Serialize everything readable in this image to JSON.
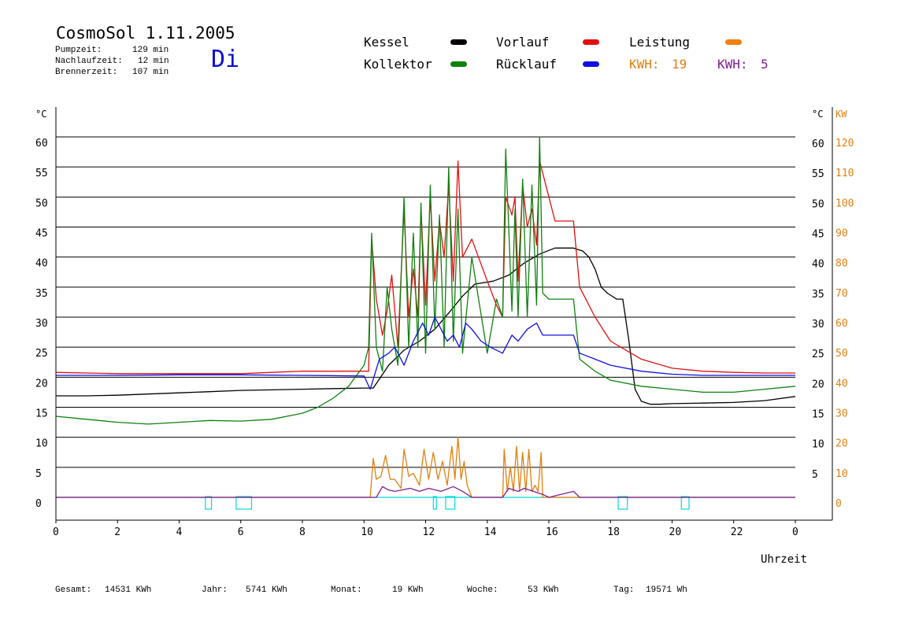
{
  "header": {
    "title": "CosmoSol 1.11.2005",
    "day": "Di",
    "stats": [
      {
        "label": "Pumpzeit:",
        "value": "129 min"
      },
      {
        "label": "Nachlaufzeit:",
        "value": "12 min"
      },
      {
        "label": "Brennerzeit:",
        "value": "107 min"
      }
    ]
  },
  "legend": {
    "kessel": {
      "label": "Kessel",
      "color": "#000000"
    },
    "kollektor": {
      "label": "Kollektor",
      "color": "#108010"
    },
    "vorlauf": {
      "label": "Vorlauf",
      "color": "#e01010"
    },
    "ruecklauf": {
      "label": "Rücklauf",
      "color": "#1010e0"
    },
    "leistung": {
      "label": "Leistung",
      "color": "#f08010"
    },
    "kwh1": {
      "label": "KWH:",
      "value": "19",
      "color": "#e08010"
    },
    "kwh2": {
      "label": "KWH:",
      "value": "5",
      "color": "#802090"
    }
  },
  "footer": {
    "gesamt": {
      "label": "Gesamt:",
      "value": "14531 KWh"
    },
    "jahr": {
      "label": "Jahr:",
      "value": "5741 KWh"
    },
    "monat": {
      "label": "Monat:",
      "value": "19 KWh"
    },
    "woche": {
      "label": "Woche:",
      "value": "53 KWh"
    },
    "tag": {
      "label": "Tag:",
      "value": "19571 Wh"
    }
  },
  "chart_data": {
    "type": "line",
    "xlabel": "Uhrzeit",
    "ylabel_left": "°C",
    "ylabel_right_temp": "°C",
    "ylabel_right_power": "KW",
    "xlim": [
      0,
      24
    ],
    "ylim": [
      0,
      60
    ],
    "x_ticks": [
      "0",
      "2",
      "4",
      "6",
      "8",
      "10",
      "12",
      "14",
      "16",
      "18",
      "20",
      "22",
      "0"
    ],
    "y_ticks_left": [
      "0",
      "5",
      "10",
      "15",
      "20",
      "25",
      "30",
      "35",
      "40",
      "45",
      "50",
      "55",
      "60"
    ],
    "y_ticks_right_temp": [
      "",
      "5",
      "10",
      "15",
      "20",
      "25",
      "30",
      "35",
      "40",
      "45",
      "50",
      "55",
      "60"
    ],
    "y_ticks_right_power": [
      "0",
      "10",
      "20",
      "30",
      "40",
      "50",
      "60",
      "70",
      "80",
      "90",
      "100",
      "110",
      "120"
    ],
    "grid": true,
    "series": [
      {
        "name": "Kessel",
        "color": "#000000",
        "x": [
          0,
          1,
          2,
          3,
          4,
          5,
          6,
          7,
          8,
          9,
          10,
          10.3,
          10.8,
          11.3,
          11.8,
          12.3,
          12.8,
          13.2,
          13.6,
          14.2,
          14.7,
          15.2,
          15.7,
          16.2,
          16.8,
          17.1,
          17.3,
          17.5,
          17.7,
          17.9,
          18.2,
          18.4,
          18.6,
          18.8,
          19.0,
          19.3,
          19.6,
          20,
          21,
          22,
          23,
          24
        ],
        "y": [
          16.9,
          16.9,
          17.0,
          17.2,
          17.4,
          17.6,
          17.8,
          17.9,
          18.0,
          18.1,
          18.2,
          18.2,
          22.0,
          24.5,
          26.0,
          28.0,
          31.0,
          33.5,
          35.5,
          36.0,
          37.0,
          39.0,
          40.5,
          41.5,
          41.5,
          41.0,
          40.0,
          38.0,
          35.0,
          34.0,
          33.0,
          33.0,
          26.0,
          18.0,
          16.0,
          15.5,
          15.5,
          15.6,
          15.7,
          15.8,
          16.1,
          16.8
        ]
      },
      {
        "name": "Vorlauf",
        "color": "#e01010",
        "x": [
          0,
          2,
          4,
          6,
          7,
          8,
          9,
          10,
          10.15,
          10.25,
          10.4,
          10.6,
          10.75,
          10.9,
          11.1,
          11.3,
          11.45,
          11.6,
          11.75,
          11.85,
          12.0,
          12.15,
          12.3,
          12.45,
          12.6,
          12.75,
          12.9,
          13.05,
          13.2,
          13.5,
          14.0,
          14.3,
          14.5,
          14.6,
          14.8,
          14.9,
          15.0,
          15.15,
          15.3,
          15.45,
          15.6,
          15.7,
          15.8,
          16.0,
          16.2,
          16.5,
          16.8,
          17.0,
          17.5,
          18,
          19,
          20,
          21,
          22,
          23,
          24
        ],
        "y": [
          20.8,
          20.6,
          20.6,
          20.6,
          20.8,
          21.0,
          21.0,
          21.0,
          21.0,
          43.0,
          33.0,
          27.0,
          31.0,
          37.0,
          25.0,
          48.0,
          30.0,
          38.0,
          30.0,
          48.0,
          32.0,
          50.0,
          36.0,
          46.0,
          40.0,
          52.0,
          36.0,
          56.0,
          40.0,
          43.0,
          36.0,
          32.0,
          30.0,
          50.0,
          47.0,
          50.0,
          36.0,
          52.0,
          45.0,
          48.0,
          42.0,
          56.0,
          54.0,
          50.0,
          46.0,
          46.0,
          46.0,
          35.0,
          30.0,
          26.0,
          23.0,
          21.5,
          21.0,
          20.8,
          20.7,
          20.7
        ]
      },
      {
        "name": "Kollektor",
        "color": "#108010",
        "x": [
          0,
          1,
          2,
          3,
          4,
          5,
          6,
          7,
          8,
          8.5,
          9,
          9.5,
          10,
          10.15,
          10.25,
          10.4,
          10.6,
          10.75,
          10.9,
          11.1,
          11.3,
          11.45,
          11.6,
          11.75,
          11.85,
          12.0,
          12.15,
          12.3,
          12.45,
          12.6,
          12.75,
          12.9,
          13.05,
          13.2,
          13.5,
          14.0,
          14.3,
          14.5,
          14.6,
          14.8,
          14.9,
          15.0,
          15.15,
          15.3,
          15.45,
          15.6,
          15.7,
          15.8,
          16.0,
          16.5,
          16.8,
          17.0,
          17.5,
          18,
          19,
          20,
          21,
          22,
          23,
          24
        ],
        "y": [
          13.5,
          13.0,
          12.5,
          12.2,
          12.5,
          12.8,
          12.7,
          13.0,
          14.0,
          15.0,
          16.5,
          18.5,
          22.0,
          25.0,
          44.0,
          25.0,
          21.0,
          35.0,
          28.0,
          22.0,
          50.0,
          25.0,
          44.0,
          25.0,
          49.0,
          24.0,
          52.0,
          28.0,
          47.0,
          25.0,
          55.0,
          26.0,
          48.0,
          24.0,
          40.0,
          24.0,
          33.0,
          30.0,
          58.0,
          31.0,
          48.0,
          30.0,
          53.0,
          30.0,
          52.0,
          32.0,
          60.0,
          34.0,
          33.0,
          33.0,
          33.0,
          23.0,
          21.0,
          19.5,
          18.5,
          18.0,
          17.5,
          17.5,
          18.0,
          18.5
        ]
      },
      {
        "name": "Rücklauf",
        "color": "#1010e0",
        "x": [
          0,
          2,
          4,
          6,
          8,
          10,
          10.2,
          10.5,
          10.8,
          11.0,
          11.3,
          11.6,
          11.9,
          12.1,
          12.3,
          12.5,
          12.7,
          12.9,
          13.1,
          13.3,
          13.5,
          13.8,
          14.1,
          14.5,
          14.8,
          15.0,
          15.3,
          15.6,
          15.8,
          16.0,
          16.5,
          16.8,
          17.0,
          17.5,
          18,
          19,
          20,
          21,
          22,
          23,
          24
        ],
        "y": [
          20.3,
          20.3,
          20.4,
          20.4,
          20.3,
          20.2,
          18.0,
          23.0,
          24.0,
          25.0,
          22.0,
          26.0,
          29.0,
          27.0,
          30.0,
          28.0,
          26.0,
          27.0,
          25.0,
          29.0,
          28.0,
          26.0,
          25.0,
          24.0,
          27.0,
          26.0,
          28.0,
          29.0,
          27.0,
          27.0,
          27.0,
          27.0,
          24.0,
          23.0,
          22.0,
          21.0,
          20.5,
          20.3,
          20.3,
          20.3,
          20.3
        ]
      },
      {
        "name": "Leistung",
        "color": "#e08010",
        "x": [
          0,
          10.2,
          10.3,
          10.4,
          10.55,
          10.7,
          10.85,
          11.0,
          11.2,
          11.3,
          11.45,
          11.6,
          11.8,
          11.95,
          12.1,
          12.25,
          12.4,
          12.55,
          12.7,
          12.85,
          12.95,
          13.05,
          13.15,
          13.25,
          13.35,
          13.5,
          14.5,
          14.55,
          14.65,
          14.75,
          14.85,
          14.95,
          15.05,
          15.15,
          15.25,
          15.35,
          15.45,
          15.55,
          15.65,
          15.75,
          15.8,
          24
        ],
        "y": [
          0,
          0,
          6.5,
          3.0,
          3.5,
          7.0,
          3.0,
          3.0,
          1.5,
          8.0,
          3.5,
          4.0,
          2.0,
          8.0,
          3.0,
          7.5,
          3.0,
          6.0,
          2.0,
          8.5,
          3.0,
          10.0,
          3.0,
          6.0,
          2.0,
          0,
          0,
          8.0,
          1.0,
          5.0,
          1.0,
          8.5,
          1.0,
          7.5,
          1.0,
          8.0,
          1.0,
          2.0,
          1.0,
          7.5,
          0,
          0
        ]
      },
      {
        "name": "",
        "color": "#802090",
        "x": [
          0,
          10.4,
          10.6,
          10.8,
          11.0,
          11.5,
          11.8,
          12.1,
          12.5,
          12.9,
          13.2,
          13.5,
          14.5,
          14.7,
          15.0,
          15.2,
          15.5,
          15.8,
          16.0,
          16.8,
          17.0,
          24
        ],
        "y": [
          0,
          0,
          1.8,
          1.2,
          1.0,
          1.5,
          1.0,
          1.5,
          1.0,
          1.8,
          1.0,
          0,
          0,
          1.5,
          1.0,
          1.5,
          1.0,
          0.5,
          0,
          1.0,
          0,
          0
        ]
      }
    ]
  }
}
